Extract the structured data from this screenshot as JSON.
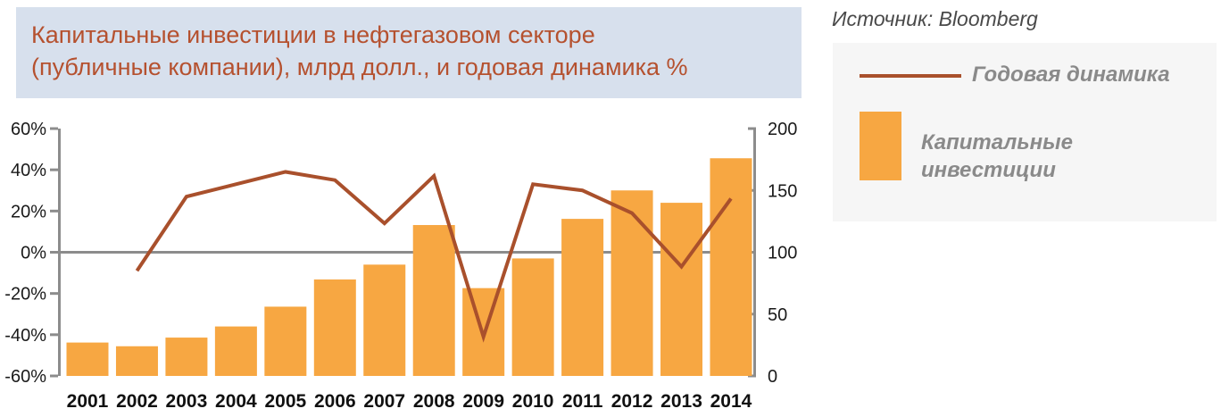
{
  "title": {
    "lines": [
      "Капитальные инвестиции в нефтегазовом секторе",
      "(публичные компании), млрд долл., и годовая динамика %"
    ],
    "bg_color": "#D7E0ED",
    "text_color": "#B5512F"
  },
  "source": {
    "text": "Источник: Bloomberg",
    "color": "#4A4A4A"
  },
  "legend": {
    "bg_color": "#F6F6F6",
    "text_color": "#8A8A8A",
    "line_label": "Годовая динамика",
    "bar_label": "Капитальные инвестиции"
  },
  "colors": {
    "bar": "#F7A742",
    "line": "#A9502C",
    "axis": "#8C8C8C",
    "tick_text": "#1A1A1A",
    "category_text": "#111111"
  },
  "chart_data": {
    "type": "bar",
    "title": "Капитальные инвестиции в нефтегазовом секторе (публичные компании), млрд долл., и годовая динамика %",
    "categories": [
      "2001",
      "2002",
      "2003",
      "2004",
      "2005",
      "2006",
      "2007",
      "2008",
      "2009",
      "2010",
      "2011",
      "2012",
      "2013",
      "2014"
    ],
    "series": [
      {
        "name": "Капитальные инвестиции",
        "type": "bar",
        "axis": "right",
        "color": "#F7A742",
        "values": [
          27,
          24,
          31,
          40,
          56,
          78,
          90,
          122,
          71,
          95,
          127,
          150,
          140,
          176
        ]
      },
      {
        "name": "Годовая динамика",
        "type": "line",
        "axis": "left",
        "color": "#A9502C",
        "values": [
          null,
          -9,
          27,
          33,
          39,
          35,
          14,
          37,
          -41,
          33,
          30,
          19,
          -7,
          26
        ]
      }
    ],
    "left_axis": {
      "unit": "%",
      "range": [
        -60,
        60
      ],
      "tick_labels": [
        "60%",
        "40%",
        "20%",
        "0%",
        "-20%",
        "-40%",
        "-60%"
      ],
      "tick_values": [
        60,
        40,
        20,
        0,
        -20,
        -40,
        -60
      ]
    },
    "right_axis": {
      "unit": "млрд долл.",
      "range": [
        0,
        200
      ],
      "tick_labels": [
        "200",
        "150",
        "100",
        "50",
        "0"
      ],
      "tick_values": [
        200,
        150,
        100,
        50,
        0
      ]
    },
    "grid": "zero-line-only",
    "legend_position": "right"
  }
}
